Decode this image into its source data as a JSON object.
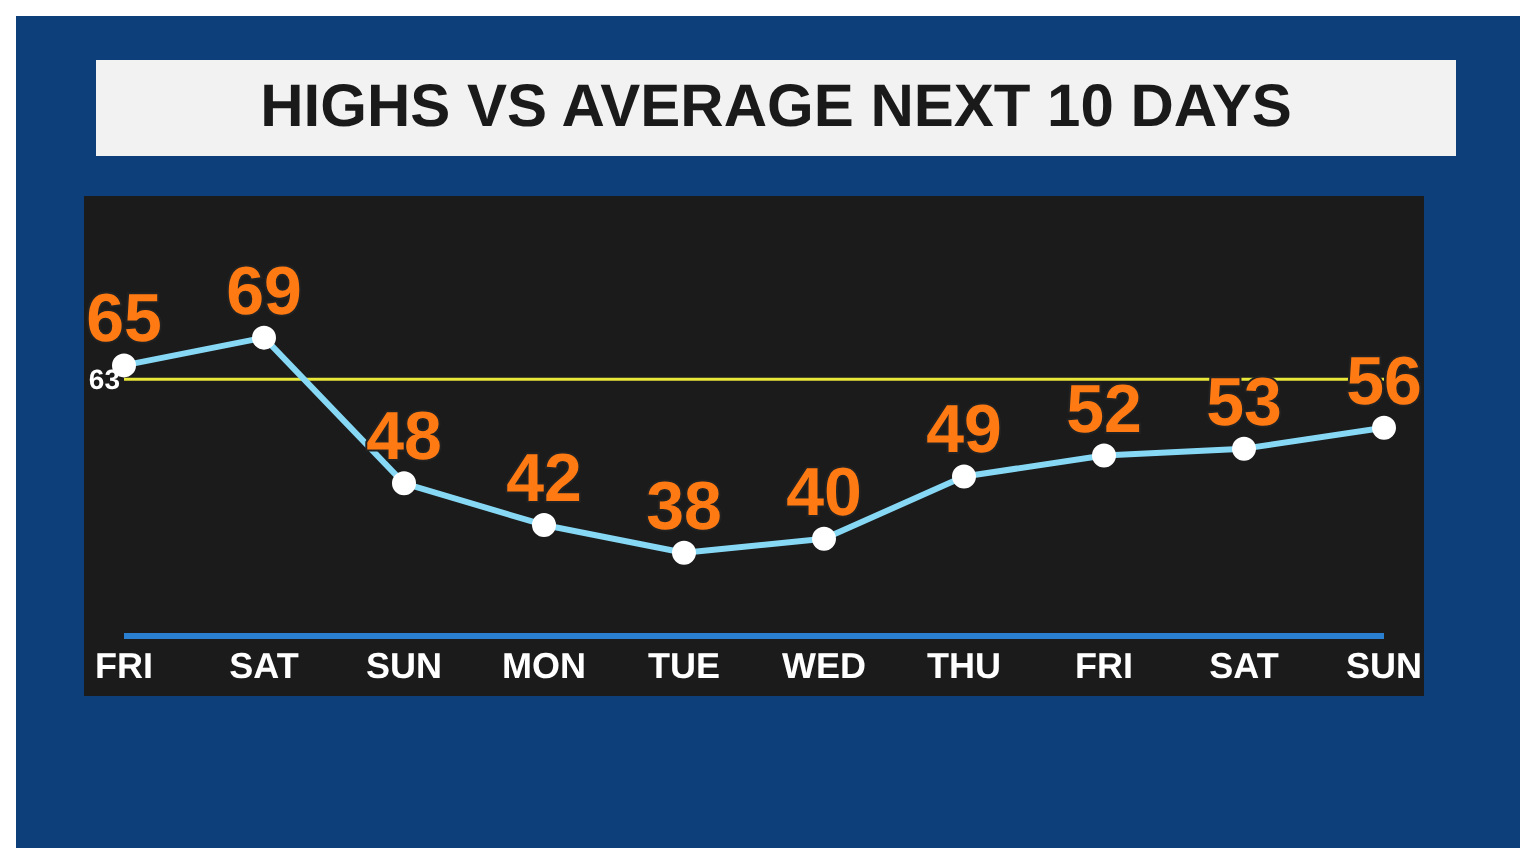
{
  "chart_data": {
    "type": "line",
    "title": "HIGHS VS AVERAGE NEXT 10 DAYS",
    "categories": [
      "FRI",
      "SAT",
      "SUN",
      "MON",
      "TUE",
      "WED",
      "THU",
      "FRI",
      "SAT",
      "SUN"
    ],
    "series": [
      {
        "color": "#86d8f5",
        "values": [
          65,
          69,
          48,
          42,
          38,
          40,
          49,
          52,
          53,
          56
        ]
      }
    ],
    "ref_lines": [
      {
        "axis": "y",
        "value": 63,
        "label": "63",
        "color": "#e8e83a"
      }
    ],
    "data_labels": true,
    "marker": "circle",
    "grid": false,
    "legend": false
  }
}
